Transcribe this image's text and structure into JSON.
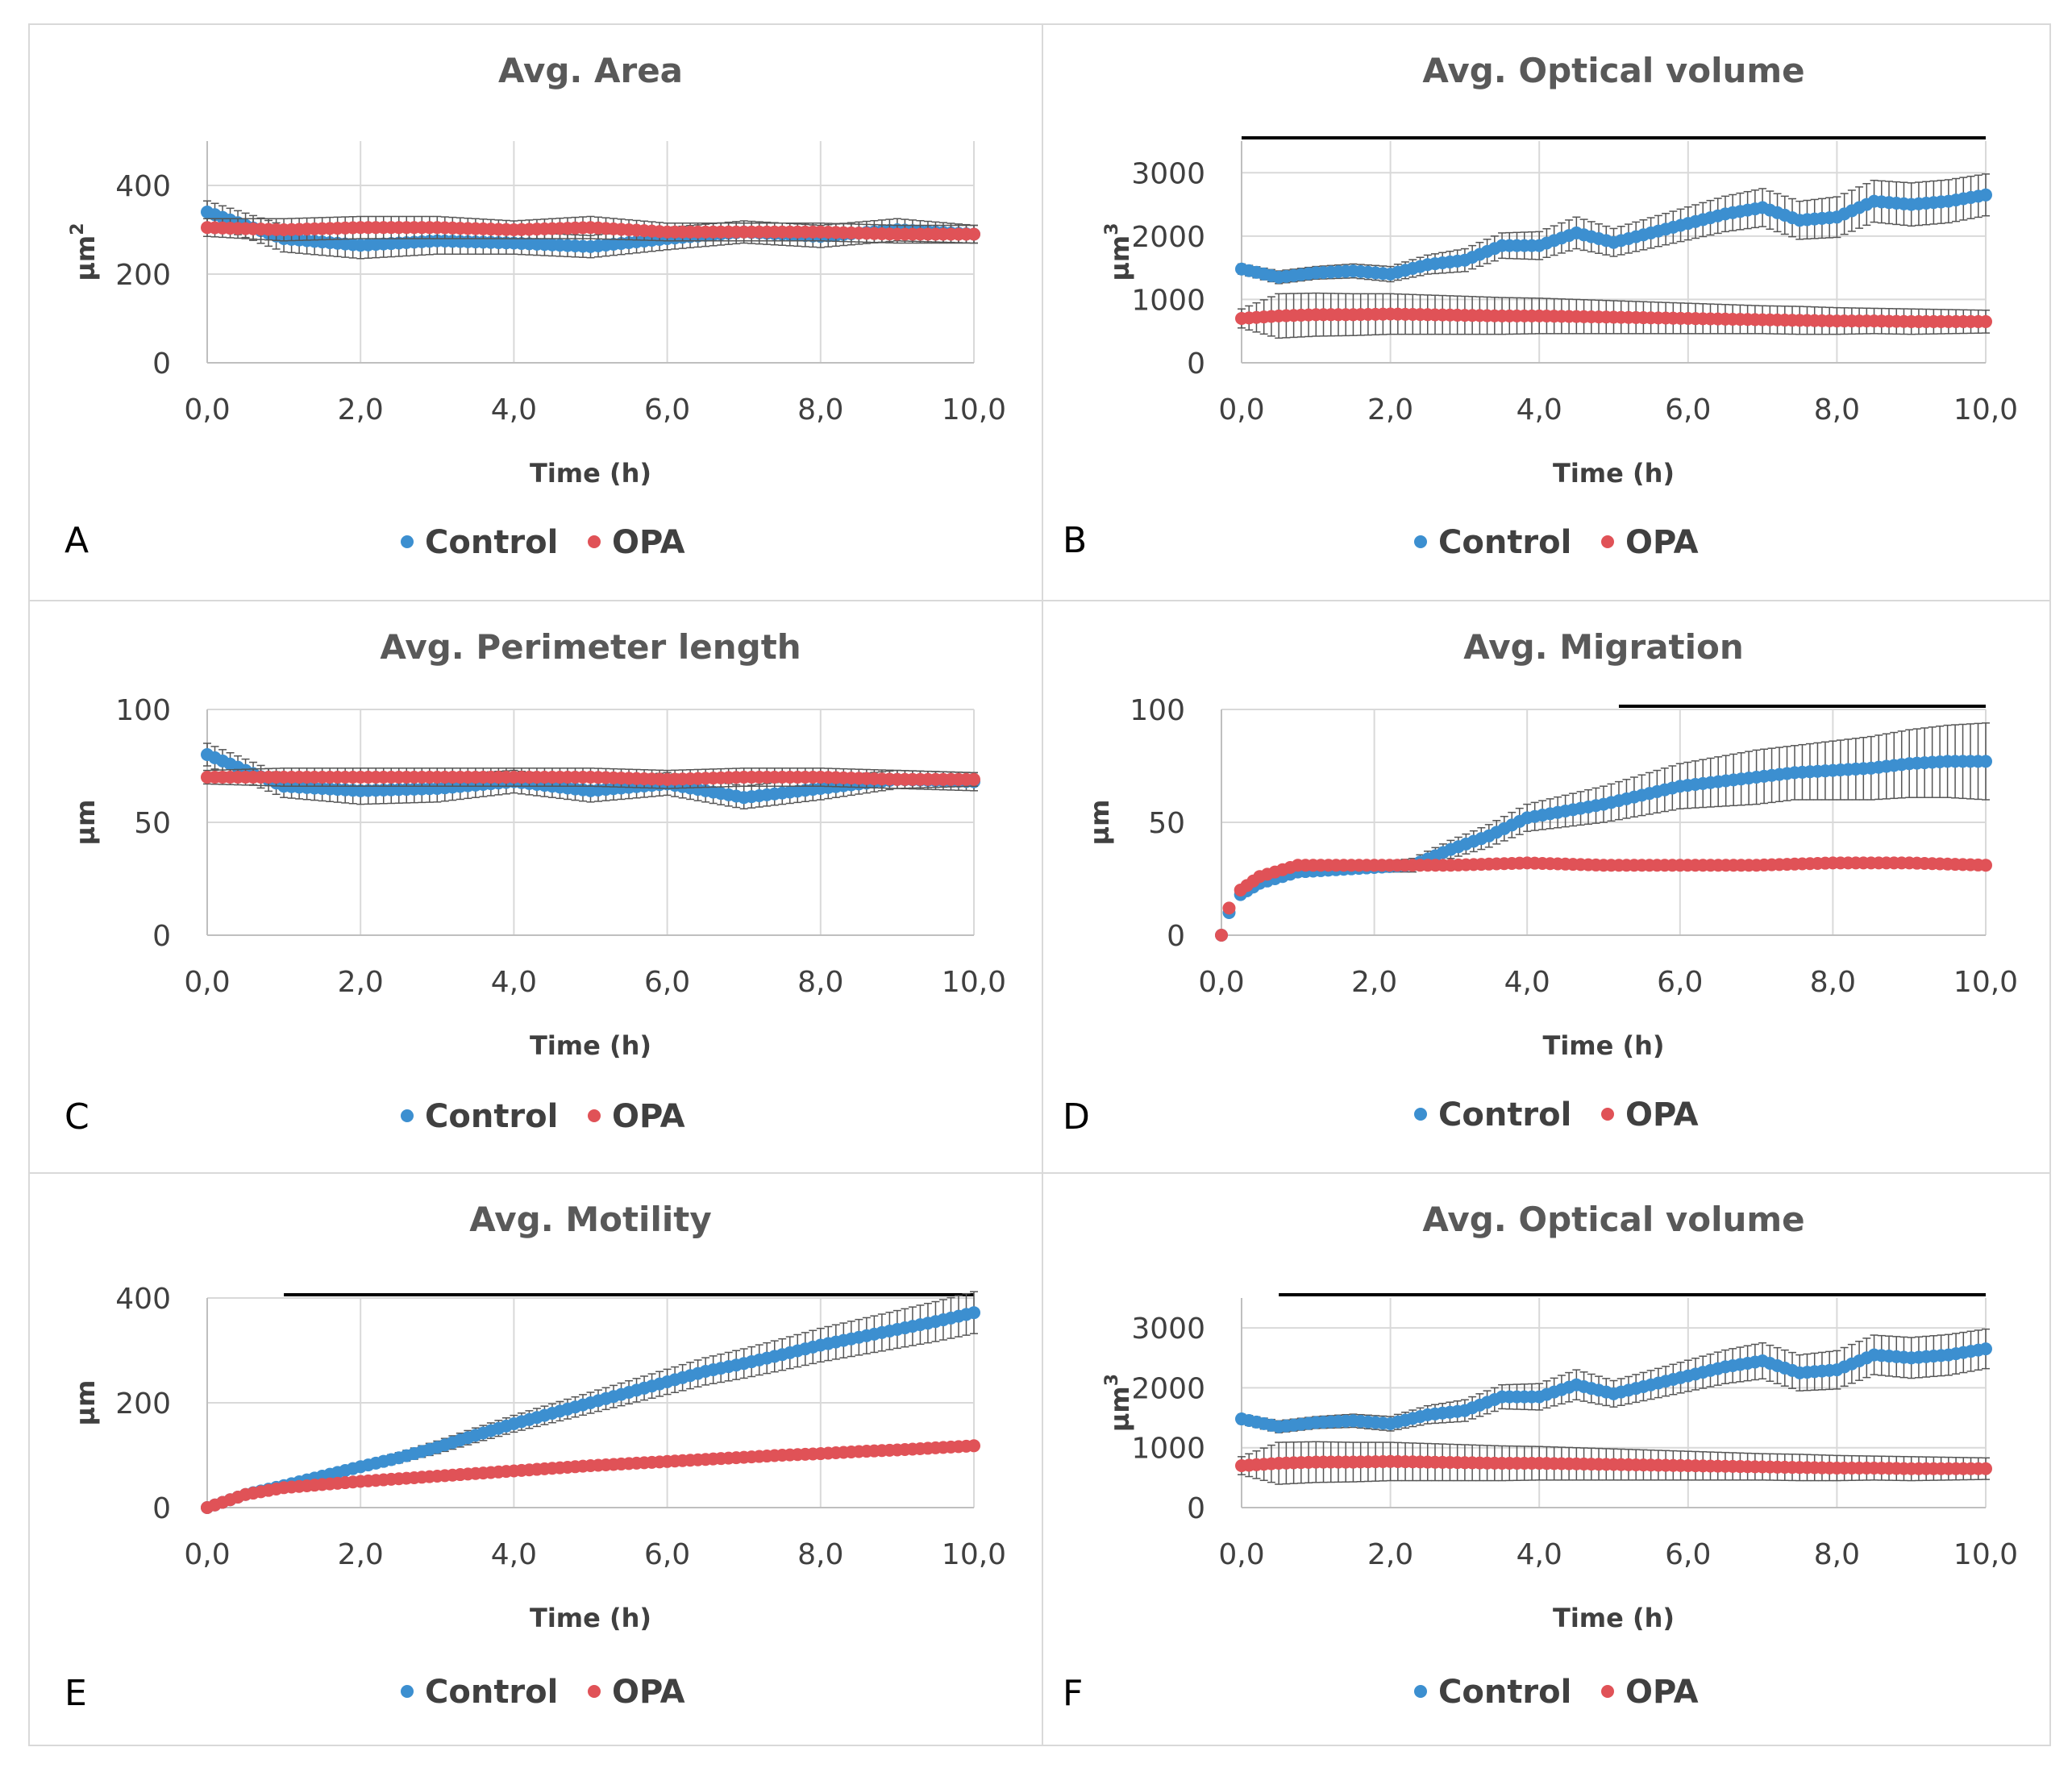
{
  "colors": {
    "control": "#3c8fd0",
    "opa": "#e05257",
    "errorbar": "#555555",
    "grid": "#d9d9d9",
    "axis": "#bfbfbf",
    "sigbar": "#000000",
    "border": "#d9d9d9"
  },
  "legend": {
    "control": "Control",
    "opa": "OPA"
  },
  "chart_data": [
    {
      "panel": "A",
      "type": "scatter",
      "title": "Avg. Area",
      "xlabel": "Time (h)",
      "ylabel": "µm",
      "ylabel_sup": "2",
      "xlim": [
        0,
        10
      ],
      "ylim": [
        0,
        500
      ],
      "xticks": [
        "0,0",
        "2,0",
        "4,0",
        "6,0",
        "8,0",
        "10,0"
      ],
      "xtick_values": [
        0,
        2,
        4,
        6,
        8,
        10
      ],
      "yticks": [
        "0",
        "200",
        "400"
      ],
      "ytick_values": [
        0,
        200,
        400
      ],
      "significance_bar": null,
      "series": [
        {
          "name": "Control",
          "x": [
            0,
            1,
            2,
            3,
            4,
            5,
            6,
            7,
            8,
            9,
            10
          ],
          "y": [
            340,
            280,
            265,
            275,
            270,
            262,
            280,
            295,
            285,
            300,
            290
          ],
          "err": [
            25,
            30,
            30,
            30,
            25,
            25,
            25,
            25,
            25,
            25,
            20
          ]
        },
        {
          "name": "OPA",
          "x": [
            0,
            1,
            2,
            3,
            4,
            5,
            6,
            7,
            8,
            9,
            10
          ],
          "y": [
            305,
            300,
            305,
            305,
            300,
            305,
            295,
            295,
            295,
            290,
            290
          ],
          "err": [
            20,
            25,
            25,
            25,
            20,
            25,
            20,
            20,
            20,
            20,
            20
          ]
        }
      ]
    },
    {
      "panel": "B",
      "type": "scatter",
      "title": "Avg. Optical volume",
      "xlabel": "Time (h)",
      "ylabel": "µm",
      "ylabel_sup": "3",
      "xlim": [
        0,
        10
      ],
      "ylim": [
        0,
        3500
      ],
      "xticks": [
        "0,0",
        "2,0",
        "4,0",
        "6,0",
        "8,0",
        "10,0"
      ],
      "xtick_values": [
        0,
        2,
        4,
        6,
        8,
        10
      ],
      "yticks": [
        "0",
        "1000",
        "2000",
        "3000"
      ],
      "ytick_values": [
        0,
        1000,
        2000,
        3000
      ],
      "significance_bar": [
        0,
        10
      ],
      "series": [
        {
          "name": "Control",
          "x": [
            0,
            0.5,
            1,
            1.5,
            2,
            2.5,
            3,
            3.5,
            4,
            4.5,
            5,
            5.5,
            6,
            6.5,
            7,
            7.5,
            8,
            8.5,
            9,
            9.5,
            10
          ],
          "y": [
            1480,
            1350,
            1420,
            1450,
            1400,
            1550,
            1620,
            1850,
            1850,
            2050,
            1900,
            2050,
            2200,
            2350,
            2450,
            2250,
            2300,
            2550,
            2500,
            2550,
            2650
          ],
          "err": [
            80,
            100,
            100,
            110,
            120,
            150,
            180,
            200,
            220,
            250,
            220,
            240,
            260,
            280,
            300,
            300,
            320,
            330,
            340,
            340,
            330
          ]
        },
        {
          "name": "OPA",
          "x": [
            0,
            0.5,
            1,
            1.5,
            2,
            2.5,
            3,
            3.5,
            4,
            4.5,
            5,
            5.5,
            6,
            6.5,
            7,
            7.5,
            8,
            8.5,
            9,
            9.5,
            10
          ],
          "y": [
            700,
            740,
            760,
            760,
            770,
            760,
            750,
            740,
            740,
            730,
            720,
            710,
            700,
            690,
            680,
            670,
            660,
            660,
            650,
            650,
            650
          ],
          "err": [
            150,
            350,
            340,
            330,
            320,
            310,
            300,
            290,
            280,
            270,
            260,
            250,
            240,
            230,
            220,
            220,
            210,
            200,
            200,
            190,
            180
          ]
        }
      ]
    },
    {
      "panel": "C",
      "type": "scatter",
      "title": "Avg. Perimeter length",
      "xlabel": "Time (h)",
      "ylabel": "µm",
      "ylabel_sup": "",
      "xlim": [
        0,
        10
      ],
      "ylim": [
        0,
        100
      ],
      "xticks": [
        "0,0",
        "2,0",
        "4,0",
        "6,0",
        "8,0",
        "10,0"
      ],
      "xtick_values": [
        0,
        2,
        4,
        6,
        8,
        10
      ],
      "yticks": [
        "0",
        "50",
        "100"
      ],
      "ytick_values": [
        0,
        50,
        100
      ],
      "significance_bar": null,
      "series": [
        {
          "name": "Control",
          "x": [
            0,
            1,
            2,
            3,
            4,
            5,
            6,
            7,
            8,
            9,
            10
          ],
          "y": [
            80,
            66,
            64,
            65,
            68,
            64,
            67,
            61,
            65,
            69,
            68
          ],
          "err": [
            5,
            5,
            6,
            6,
            5,
            5,
            5,
            5,
            5,
            4,
            4
          ]
        },
        {
          "name": "OPA",
          "x": [
            0,
            1,
            2,
            3,
            4,
            5,
            6,
            7,
            8,
            9,
            10
          ],
          "y": [
            70,
            70,
            70,
            70,
            70,
            70,
            69,
            70,
            70,
            69,
            69
          ],
          "err": [
            3,
            4,
            4,
            4,
            4,
            4,
            4,
            4,
            4,
            4,
            3
          ]
        }
      ]
    },
    {
      "panel": "D",
      "type": "scatter",
      "title": "Avg. Migration",
      "xlabel": "Time (h)",
      "ylabel": "µm",
      "ylabel_sup": "",
      "xlim": [
        0,
        10
      ],
      "ylim": [
        0,
        100
      ],
      "xticks": [
        "0,0",
        "2,0",
        "4,0",
        "6,0",
        "8,0",
        "10,0"
      ],
      "xtick_values": [
        0,
        2,
        4,
        6,
        8,
        10
      ],
      "yticks": [
        "0",
        "50",
        "100"
      ],
      "ytick_values": [
        0,
        50,
        100
      ],
      "significance_bar": [
        5.2,
        10
      ],
      "series": [
        {
          "name": "Control",
          "x": [
            0,
            0.1,
            0.25,
            0.5,
            1,
            1.5,
            2,
            2.5,
            3,
            3.5,
            4,
            4.5,
            5,
            5.5,
            6,
            6.5,
            7,
            7.5,
            8,
            8.5,
            9,
            9.5,
            10
          ],
          "y": [
            0,
            10,
            18,
            23,
            28,
            29,
            30,
            31,
            38,
            44,
            52,
            55,
            58,
            62,
            66,
            68,
            70,
            72,
            73,
            74,
            76,
            77,
            77
          ],
          "err": [
            0,
            2,
            2,
            2,
            2,
            2,
            2,
            3,
            4,
            5,
            6,
            7,
            8,
            9,
            10,
            11,
            12,
            12,
            13,
            14,
            15,
            16,
            17
          ]
        },
        {
          "name": "OPA",
          "x": [
            0,
            0.1,
            0.25,
            0.5,
            1,
            1.5,
            2,
            3,
            4,
            5,
            6,
            7,
            8,
            9,
            10
          ],
          "y": [
            0,
            12,
            20,
            26,
            31,
            31,
            31,
            31,
            32,
            31,
            31,
            31,
            32,
            32,
            31
          ],
          "err": [
            0,
            1,
            1,
            1,
            1,
            1,
            1,
            1,
            1,
            1,
            1,
            1,
            1,
            2,
            2
          ]
        }
      ]
    },
    {
      "panel": "E",
      "type": "scatter",
      "title": "Avg. Motility",
      "xlabel": "Time (h)",
      "ylabel": "µm",
      "ylabel_sup": "",
      "xlim": [
        0,
        10
      ],
      "ylim": [
        0,
        400
      ],
      "xticks": [
        "0,0",
        "2,0",
        "4,0",
        "6,0",
        "8,0",
        "10,0"
      ],
      "xtick_values": [
        0,
        2,
        4,
        6,
        8,
        10
      ],
      "yticks": [
        "0",
        "200",
        "400"
      ],
      "ytick_values": [
        0,
        200,
        400
      ],
      "significance_bar": [
        1,
        10
      ],
      "series": [
        {
          "name": "Control",
          "x": [
            0,
            0.5,
            1,
            1.5,
            2,
            2.5,
            3,
            3.5,
            4,
            4.5,
            5,
            5.5,
            6,
            6.5,
            7,
            7.5,
            8,
            8.5,
            9,
            9.5,
            10
          ],
          "y": [
            0,
            25,
            42,
            60,
            78,
            95,
            115,
            138,
            160,
            180,
            200,
            220,
            240,
            260,
            275,
            292,
            310,
            325,
            340,
            355,
            372
          ],
          "err": [
            0,
            3,
            5,
            6,
            8,
            10,
            12,
            14,
            16,
            18,
            20,
            22,
            24,
            26,
            28,
            30,
            32,
            34,
            36,
            38,
            40
          ]
        },
        {
          "name": "OPA",
          "x": [
            0,
            0.5,
            1,
            1.5,
            2,
            2.5,
            3,
            3.5,
            4,
            4.5,
            5,
            5.5,
            6,
            6.5,
            7,
            7.5,
            8,
            8.5,
            9,
            9.5,
            10
          ],
          "y": [
            0,
            25,
            38,
            44,
            50,
            55,
            60,
            65,
            70,
            75,
            80,
            84,
            88,
            92,
            96,
            100,
            103,
            107,
            110,
            114,
            118
          ],
          "err": [
            0,
            2,
            2,
            2,
            3,
            3,
            3,
            3,
            3,
            3,
            4,
            4,
            4,
            4,
            4,
            4,
            5,
            5,
            5,
            5,
            5
          ]
        }
      ]
    },
    {
      "panel": "F",
      "type": "scatter",
      "title": "Avg. Optical volume",
      "xlabel": "Time (h)",
      "ylabel": "µm",
      "ylabel_sup": "3",
      "xlim": [
        0,
        10
      ],
      "ylim": [
        0,
        3500
      ],
      "xticks": [
        "0,0",
        "2,0",
        "4,0",
        "6,0",
        "8,0",
        "10,0"
      ],
      "xtick_values": [
        0,
        2,
        4,
        6,
        8,
        10
      ],
      "yticks": [
        "0",
        "1000",
        "2000",
        "3000"
      ],
      "ytick_values": [
        0,
        1000,
        2000,
        3000
      ],
      "significance_bar": [
        0.5,
        10
      ],
      "series": [
        {
          "name": "Control",
          "x": [
            0,
            0.5,
            1,
            1.5,
            2,
            2.5,
            3,
            3.5,
            4,
            4.5,
            5,
            5.5,
            6,
            6.5,
            7,
            7.5,
            8,
            8.5,
            9,
            9.5,
            10
          ],
          "y": [
            1480,
            1350,
            1420,
            1450,
            1400,
            1550,
            1620,
            1850,
            1850,
            2050,
            1900,
            2050,
            2200,
            2350,
            2450,
            2250,
            2300,
            2550,
            2500,
            2550,
            2650
          ],
          "err": [
            80,
            100,
            100,
            110,
            120,
            150,
            180,
            200,
            220,
            250,
            220,
            240,
            260,
            280,
            300,
            300,
            320,
            330,
            340,
            340,
            330
          ]
        },
        {
          "name": "OPA",
          "x": [
            0,
            0.5,
            1,
            1.5,
            2,
            2.5,
            3,
            3.5,
            4,
            4.5,
            5,
            5.5,
            6,
            6.5,
            7,
            7.5,
            8,
            8.5,
            9,
            9.5,
            10
          ],
          "y": [
            700,
            740,
            760,
            760,
            770,
            760,
            750,
            740,
            740,
            730,
            720,
            710,
            700,
            690,
            680,
            670,
            660,
            660,
            650,
            650,
            650
          ],
          "err": [
            150,
            350,
            340,
            330,
            320,
            310,
            300,
            290,
            280,
            270,
            260,
            250,
            240,
            230,
            220,
            220,
            210,
            200,
            200,
            190,
            180
          ]
        }
      ]
    }
  ]
}
